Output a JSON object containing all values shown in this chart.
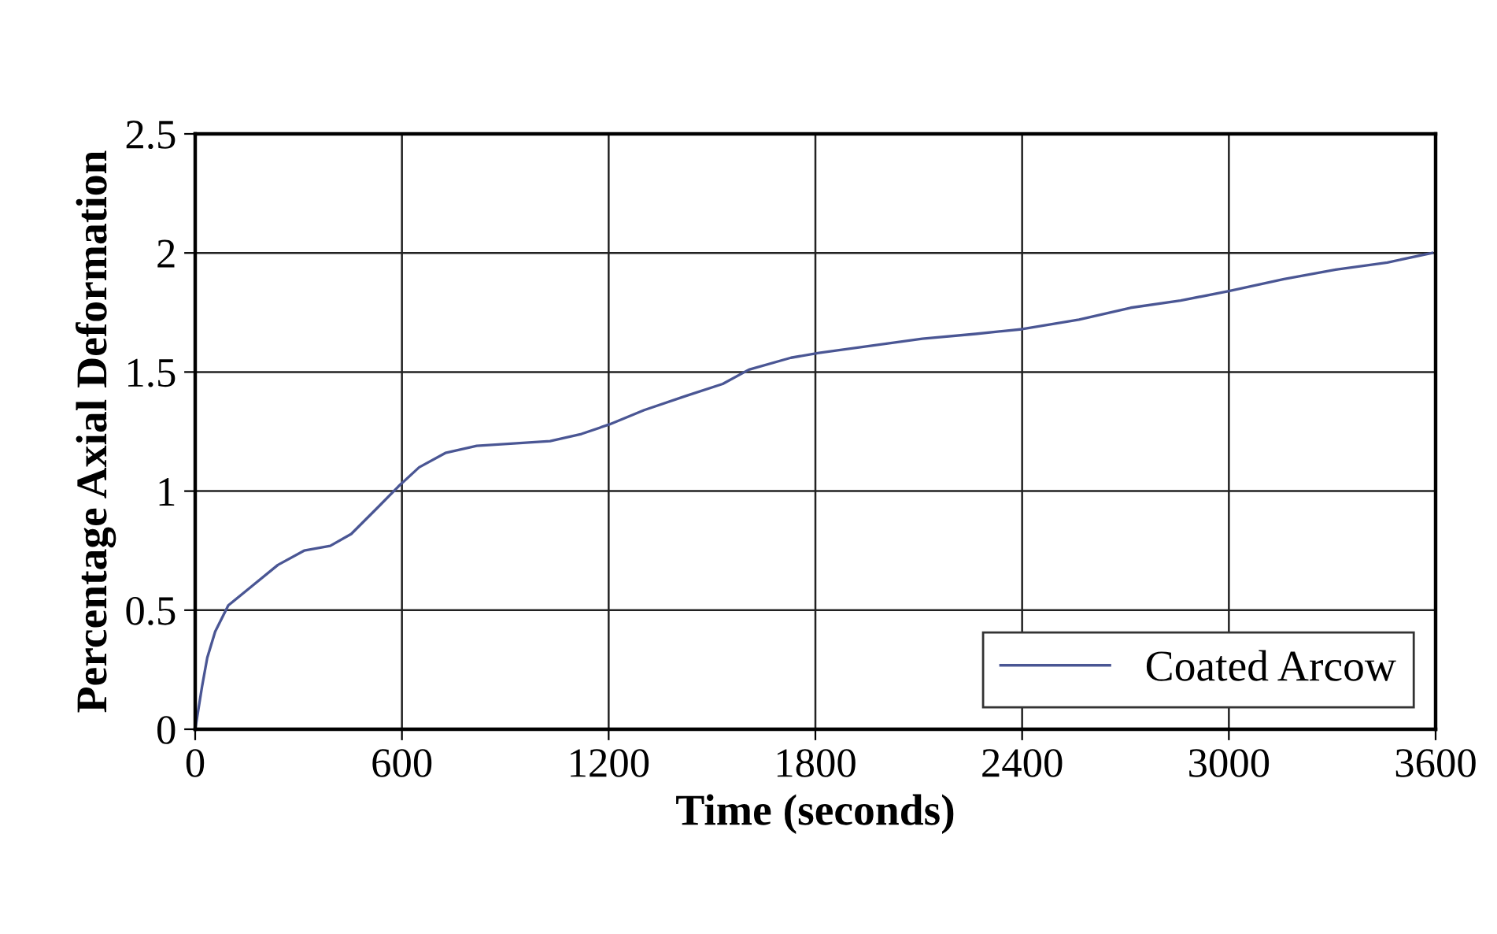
{
  "chart_data": {
    "type": "line",
    "xlabel": "Time (seconds)",
    "ylabel": "Percentage Axial Deformation",
    "xlim": [
      0,
      3600
    ],
    "xticks": [
      0,
      600,
      1200,
      1800,
      2400,
      3000,
      3600
    ],
    "ylim": [
      0,
      2.5
    ],
    "yticks": [
      0,
      0.5,
      1,
      1.5,
      2,
      2.5
    ],
    "grid": true,
    "legend": "bottom right",
    "series": [
      {
        "name": "Coated Arcow",
        "color": "#4a5694",
        "x": [
          0,
          20,
          35,
          58,
          96,
          164,
          240,
          316,
          392,
          453,
          529,
          590,
          650,
          726,
          817,
          924,
          1030,
          1121,
          1202,
          1303,
          1425,
          1531,
          1607,
          1729,
          1810,
          1960,
          2110,
          2265,
          2400,
          2565,
          2715,
          2860,
          3000,
          3160,
          3310,
          3460,
          3590
        ],
        "values": [
          0,
          0.18,
          0.3,
          0.41,
          0.52,
          0.6,
          0.69,
          0.75,
          0.77,
          0.82,
          0.93,
          1.02,
          1.1,
          1.16,
          1.19,
          1.2,
          1.21,
          1.24,
          1.28,
          1.34,
          1.4,
          1.45,
          1.51,
          1.56,
          1.58,
          1.61,
          1.64,
          1.66,
          1.68,
          1.72,
          1.77,
          1.8,
          1.84,
          1.89,
          1.93,
          1.96,
          2.0
        ]
      }
    ]
  }
}
